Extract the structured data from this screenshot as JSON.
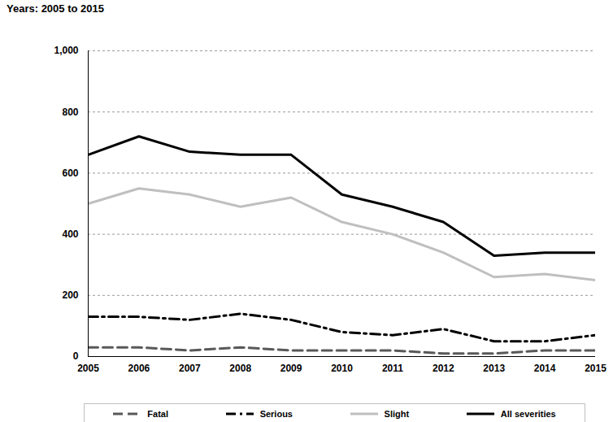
{
  "chart_data": {
    "type": "line",
    "title": "Years: 2005 to 2015",
    "x": [
      2005,
      2006,
      2007,
      2008,
      2009,
      2010,
      2011,
      2012,
      2013,
      2014,
      2015
    ],
    "xlim": [
      2005,
      2015
    ],
    "xticks": [
      2005,
      2006,
      2007,
      2008,
      2009,
      2010,
      2011,
      2012,
      2013,
      2014,
      2015
    ],
    "ylim": [
      0,
      1000
    ],
    "yticks": [
      0,
      200,
      400,
      600,
      800,
      {
        "value": 1000,
        "label": "1,000"
      }
    ],
    "grid": true,
    "legend": "bottom",
    "series": [
      {
        "name": "Fatal",
        "color": "#595959",
        "line_style": "dashed",
        "values": [
          30,
          30,
          20,
          30,
          20,
          20,
          20,
          10,
          10,
          20,
          20
        ]
      },
      {
        "name": "Serious",
        "color": "#000000",
        "line_style": "dashdot",
        "values": [
          130,
          130,
          120,
          140,
          120,
          80,
          70,
          90,
          50,
          50,
          70
        ]
      },
      {
        "name": "Slight",
        "color": "#bfbfbf",
        "line_style": "solid",
        "values": [
          500,
          550,
          530,
          490,
          520,
          440,
          400,
          340,
          260,
          270,
          250
        ]
      },
      {
        "name": "All severities",
        "color": "#000000",
        "line_style": "solid",
        "values": [
          660,
          720,
          670,
          660,
          660,
          530,
          490,
          440,
          330,
          340,
          340
        ]
      }
    ]
  }
}
